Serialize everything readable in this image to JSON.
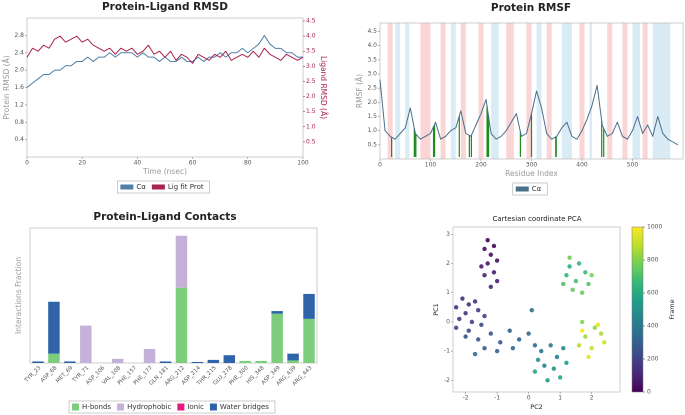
{
  "chart_data": [
    {
      "type": "line",
      "title": "Protein-Ligand RMSD",
      "xlabel": "Time (nsec)",
      "ylabel": "Protein RMSD (Å)",
      "y2label": "Ligand RMSD (Å)",
      "x": [
        0,
        2,
        4,
        6,
        8,
        10,
        12,
        14,
        16,
        18,
        20,
        22,
        24,
        26,
        28,
        30,
        32,
        34,
        36,
        38,
        40,
        42,
        44,
        46,
        48,
        50,
        52,
        54,
        56,
        58,
        60,
        62,
        64,
        66,
        68,
        70,
        72,
        74,
        76,
        78,
        80,
        82,
        84,
        86,
        88,
        90,
        92,
        94,
        96,
        98,
        100
      ],
      "series": [
        {
          "name": "Cα",
          "color": "#4f7fa6",
          "axis": "y",
          "values": [
            1.6,
            1.7,
            1.8,
            1.9,
            1.9,
            2.0,
            2.0,
            2.1,
            2.1,
            2.2,
            2.2,
            2.3,
            2.2,
            2.3,
            2.3,
            2.4,
            2.3,
            2.4,
            2.4,
            2.4,
            2.3,
            2.4,
            2.3,
            2.3,
            2.2,
            2.3,
            2.2,
            2.2,
            2.3,
            2.2,
            2.2,
            2.3,
            2.2,
            2.3,
            2.3,
            2.4,
            2.3,
            2.4,
            2.4,
            2.5,
            2.4,
            2.5,
            2.6,
            2.8,
            2.6,
            2.5,
            2.5,
            2.4,
            2.4,
            2.3,
            2.3
          ]
        },
        {
          "name": "Lig fit Prot",
          "color": "#a8234d",
          "axis": "y2",
          "values": [
            3.3,
            3.6,
            3.5,
            3.7,
            3.6,
            3.9,
            4.0,
            3.8,
            3.9,
            4.0,
            3.8,
            3.9,
            3.7,
            3.6,
            3.5,
            3.6,
            3.4,
            3.6,
            3.5,
            3.6,
            3.4,
            3.5,
            3.7,
            3.4,
            3.5,
            3.3,
            3.5,
            3.2,
            3.4,
            3.3,
            3.1,
            3.4,
            3.3,
            3.2,
            3.4,
            3.3,
            3.5,
            3.2,
            3.3,
            3.4,
            3.3,
            3.5,
            3.3,
            3.6,
            3.4,
            3.3,
            3.2,
            3.4,
            3.3,
            3.2,
            3.3
          ]
        }
      ],
      "xlim": [
        0,
        100
      ],
      "xticks": [
        0,
        20,
        40,
        60,
        80,
        100
      ],
      "ylim": [
        0,
        3.2
      ],
      "yticks": [
        0.4,
        0.8,
        1.2,
        1.6,
        {
          "value": 2,
          "label": "2.0"
        },
        2.4,
        2.8
      ],
      "y2lim": [
        0,
        4.6
      ],
      "y2ticks": [
        0.5,
        {
          "value": 1,
          "label": "1.0"
        },
        1.5,
        {
          "value": 2,
          "label": "2.0"
        },
        2.5,
        {
          "value": 3,
          "label": "3.0"
        },
        3.5,
        {
          "value": 4,
          "label": "4.0"
        },
        4.5
      ]
    },
    {
      "type": "line",
      "title": "Protein RMSF",
      "xlabel": "Residue Index",
      "ylabel": "RMSF (Å)",
      "x": [
        0,
        10,
        20,
        30,
        40,
        50,
        60,
        70,
        80,
        90,
        100,
        110,
        120,
        130,
        140,
        150,
        160,
        170,
        180,
        190,
        200,
        210,
        220,
        230,
        240,
        250,
        260,
        270,
        280,
        290,
        300,
        310,
        320,
        330,
        340,
        350,
        360,
        370,
        380,
        390,
        400,
        410,
        420,
        430,
        440,
        450,
        460,
        470,
        480,
        490,
        500,
        510,
        520,
        530,
        540,
        550,
        560,
        570,
        580,
        590
      ],
      "series": [
        {
          "name": "Cα",
          "color": "#4a6f8a",
          "axis": "y",
          "values": [
            2.8,
            1.0,
            0.8,
            0.7,
            0.9,
            1.1,
            1.8,
            0.9,
            0.7,
            0.8,
            0.9,
            1.3,
            0.7,
            0.8,
            1.0,
            1.1,
            1.7,
            0.9,
            0.8,
            1.2,
            1.6,
            2.1,
            0.9,
            0.7,
            0.8,
            1.0,
            1.3,
            1.6,
            0.8,
            0.9,
            1.6,
            2.4,
            1.8,
            0.9,
            0.7,
            0.8,
            1.1,
            1.3,
            0.8,
            0.7,
            1.0,
            1.4,
            1.9,
            2.6,
            1.2,
            0.8,
            0.9,
            1.3,
            0.8,
            0.7,
            1.0,
            1.5,
            0.9,
            1.2,
            0.8,
            1.5,
            0.9,
            0.7,
            0.6,
            0.5
          ]
        }
      ],
      "bands": [
        {
          "start": 15,
          "end": 25,
          "color": "#f7b9b9"
        },
        {
          "start": 30,
          "end": 40,
          "color": "#bfe0ef"
        },
        {
          "start": 50,
          "end": 58,
          "color": "#bfe0ef"
        },
        {
          "start": 80,
          "end": 100,
          "color": "#f7b9b9"
        },
        {
          "start": 120,
          "end": 130,
          "color": "#f7b9b9"
        },
        {
          "start": 140,
          "end": 150,
          "color": "#bfe0ef"
        },
        {
          "start": 160,
          "end": 170,
          "color": "#f7b9b9"
        },
        {
          "start": 195,
          "end": 205,
          "color": "#f7b9b9"
        },
        {
          "start": 220,
          "end": 235,
          "color": "#bfe0ef"
        },
        {
          "start": 250,
          "end": 265,
          "color": "#f7b9b9"
        },
        {
          "start": 290,
          "end": 300,
          "color": "#f7b9b9"
        },
        {
          "start": 310,
          "end": 320,
          "color": "#bfe0ef"
        },
        {
          "start": 330,
          "end": 340,
          "color": "#f7b9b9"
        },
        {
          "start": 360,
          "end": 380,
          "color": "#bfe0ef"
        },
        {
          "start": 395,
          "end": 405,
          "color": "#f7b9b9"
        },
        {
          "start": 415,
          "end": 420,
          "color": "#bfe0ef"
        },
        {
          "start": 450,
          "end": 460,
          "color": "#f7b9b9"
        },
        {
          "start": 480,
          "end": 490,
          "color": "#f7b9b9"
        },
        {
          "start": 500,
          "end": 515,
          "color": "#bfe0ef"
        },
        {
          "start": 520,
          "end": 530,
          "color": "#f7b9b9"
        },
        {
          "start": 540,
          "end": 575,
          "color": "#bfe0ef"
        }
      ],
      "contact_residues": [
        23,
        68,
        69,
        71,
        106,
        108,
        157,
        177,
        181,
        212,
        214,
        215,
        278,
        300,
        348,
        349,
        439,
        443
      ],
      "contact_color": "#1e8c1e",
      "xlim": [
        0,
        600
      ],
      "xticks": [
        0,
        100,
        200,
        300,
        400,
        500
      ],
      "ylim": [
        0,
        4.8
      ],
      "yticks": [
        0.5,
        {
          "value": 1,
          "label": "1.0"
        },
        1.5,
        {
          "value": 2,
          "label": "2.0"
        },
        2.5,
        {
          "value": 3,
          "label": "3.0"
        },
        3.5,
        {
          "value": 4,
          "label": "4.0"
        },
        4.5
      ]
    },
    {
      "type": "bar",
      "title": "Protein-Ligand Contacts",
      "ylabel": "Interactions Fraction",
      "stacked": true,
      "categories": [
        "TYR_23",
        "ASP_68",
        "MET_69",
        "TYR_71",
        "ASP_106",
        "VAL_108",
        "PHE_157",
        "PHE_177",
        "GLN_181",
        "ARG_212",
        "ASP_214",
        "THR_215",
        "GLU_278",
        "PHE_300",
        "HIS_348",
        "ASP_349",
        "ARG_439",
        "ARG_443"
      ],
      "series": [
        {
          "name": "H-bonds",
          "color": "#7ccd7c",
          "values": [
            0,
            0.18,
            0,
            0,
            0,
            0,
            0,
            0,
            0,
            1.45,
            0,
            0,
            0,
            0.04,
            0.04,
            0.95,
            0.05,
            0.85
          ]
        },
        {
          "name": "Hydrophobic",
          "color": "#c5b0d8",
          "values": [
            0,
            0,
            0,
            0.72,
            0,
            0.08,
            0,
            0.27,
            0,
            1.0,
            0,
            0,
            0,
            0,
            0,
            0,
            0,
            0
          ]
        },
        {
          "name": "Ionic",
          "color": "#e8177d",
          "values": [
            0,
            0,
            0,
            0,
            0,
            0,
            0,
            0,
            0,
            0,
            0,
            0,
            0,
            0,
            0,
            0,
            0,
            0
          ]
        },
        {
          "name": "Water bridges",
          "color": "#2f64a8",
          "values": [
            0.03,
            1.0,
            0.03,
            0,
            0,
            0,
            0,
            0,
            0.03,
            0,
            0.02,
            0.06,
            0.15,
            0,
            0,
            0.05,
            0.13,
            0.48
          ]
        }
      ],
      "ylim": [
        0,
        2.6
      ]
    },
    {
      "type": "scatter",
      "title": "Cartesian coordinate PCA",
      "xlabel": "PC2",
      "ylabel": "PC1",
      "clabel": "Frame",
      "x": [
        -1.3,
        -1.1,
        -1.4,
        -1.2,
        -1.0,
        -1.3,
        -1.5,
        -1.1,
        -1.4,
        -1.0,
        -1.2,
        -2.1,
        -1.9,
        -2.3,
        -1.7,
        -2.0,
        -1.6,
        -2.2,
        -1.8,
        -1.4,
        -2.3,
        -1.9,
        -1.5,
        -2.0,
        -1.6,
        -1.2,
        -0.9,
        -1.4,
        -0.6,
        -0.3,
        -1.0,
        0.0,
        -0.5,
        0.2,
        -1.7,
        0.1,
        0.4,
        0.7,
        0.9,
        0.5,
        1.1,
        0.3,
        0.8,
        1.2,
        0.6,
        0.2,
        1.0,
        1.3,
        1.6,
        1.2,
        1.8,
        1.5,
        1.1,
        1.9,
        1.4,
        1.7,
        1.3,
        2.0,
        1.7,
        2.1,
        1.8,
        2.3,
        1.6,
        2.0,
        2.4,
        1.9,
        2.2,
        1.7
      ],
      "y": [
        2.8,
        2.6,
        2.5,
        2.3,
        2.1,
        2.0,
        1.9,
        1.7,
        1.6,
        1.4,
        1.2,
        0.8,
        0.6,
        0.5,
        0.7,
        0.3,
        0.4,
        0.1,
        0.0,
        0.2,
        -0.2,
        -0.3,
        -0.1,
        -0.5,
        -0.6,
        -0.4,
        -0.7,
        -0.9,
        -0.3,
        -0.6,
        -1.0,
        -0.4,
        -0.9,
        -0.8,
        -1.1,
        0.4,
        -1.0,
        -0.8,
        -1.2,
        -1.5,
        -0.9,
        -1.3,
        -1.6,
        -1.4,
        -2.0,
        -1.7,
        -1.9,
        1.9,
        2.0,
        1.6,
        1.7,
        1.4,
        1.3,
        1.3,
        1.1,
        1.0,
        2.2,
        1.6,
        0.0,
        -0.2,
        -0.5,
        -0.4,
        -0.8,
        -0.9,
        -0.7,
        -1.2,
        -0.1,
        -0.3
      ],
      "c": [
        10,
        20,
        30,
        40,
        50,
        60,
        70,
        80,
        90,
        100,
        110,
        120,
        130,
        140,
        150,
        160,
        170,
        180,
        190,
        200,
        210,
        220,
        230,
        250,
        260,
        270,
        280,
        290,
        300,
        310,
        320,
        330,
        340,
        350,
        360,
        370,
        400,
        420,
        440,
        460,
        480,
        500,
        520,
        540,
        560,
        580,
        590,
        620,
        640,
        660,
        680,
        700,
        710,
        730,
        750,
        770,
        780,
        790,
        810,
        830,
        850,
        870,
        890,
        910,
        930,
        950,
        970,
        990
      ],
      "xlim": [
        -2.4,
        2.9
      ],
      "xticks": [
        -2,
        -1,
        0,
        1,
        2
      ],
      "ylim": [
        -2.4,
        3.25
      ],
      "yticks": [
        -2,
        -1,
        0,
        1,
        2,
        3
      ],
      "clim": [
        0,
        1000
      ],
      "cticks": [
        0,
        200,
        400,
        600,
        800,
        1000
      ]
    }
  ]
}
